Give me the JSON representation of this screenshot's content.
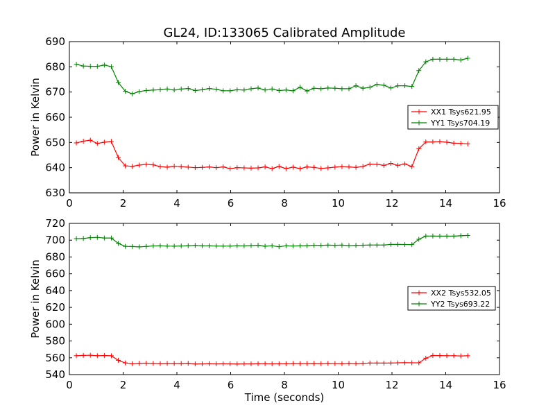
{
  "chart_data": [
    {
      "type": "line",
      "title": "GL24, ID:133065 Calibrated Amplitude",
      "xlabel": "",
      "ylabel": "Power in Kelvin",
      "xlim": [
        0,
        16
      ],
      "ylim": [
        630,
        690
      ],
      "xticks": [
        0,
        2,
        4,
        6,
        8,
        10,
        12,
        14,
        16
      ],
      "yticks": [
        630,
        640,
        650,
        660,
        670,
        680,
        690
      ],
      "grid": false,
      "legend": "right",
      "x": [
        0.26,
        0.52,
        0.78,
        1.04,
        1.3,
        1.56,
        1.82,
        2.08,
        2.34,
        2.6,
        2.86,
        3.12,
        3.38,
        3.64,
        3.9,
        4.16,
        4.42,
        4.68,
        4.94,
        5.2,
        5.46,
        5.72,
        5.98,
        6.24,
        6.5,
        6.76,
        7.02,
        7.28,
        7.54,
        7.8,
        8.06,
        8.32,
        8.58,
        8.84,
        9.1,
        9.36,
        9.62,
        9.88,
        10.14,
        10.4,
        10.66,
        10.92,
        11.18,
        11.44,
        11.7,
        11.96,
        12.22,
        12.48,
        12.74,
        13.0,
        13.26,
        13.52,
        13.78,
        14.04,
        14.3,
        14.56,
        14.82
      ],
      "series": [
        {
          "name": "XX1 Tsys621.95",
          "color": "#ff0000",
          "values": [
            649.8,
            650.5,
            650.9,
            649.6,
            650.1,
            650.4,
            644.0,
            640.7,
            640.5,
            641.0,
            641.3,
            641.1,
            640.4,
            640.2,
            640.6,
            640.4,
            640.2,
            640.0,
            640.1,
            640.3,
            640.0,
            640.3,
            639.6,
            640.0,
            639.9,
            639.8,
            639.9,
            640.3,
            639.6,
            640.5,
            639.6,
            640.2,
            639.6,
            640.3,
            640.1,
            639.7,
            639.9,
            640.2,
            640.4,
            640.3,
            640.1,
            640.5,
            641.4,
            641.3,
            640.9,
            641.7,
            640.9,
            641.5,
            640.4,
            647.5,
            650.2,
            650.2,
            650.3,
            650.1,
            649.7,
            649.6,
            649.4
          ]
        },
        {
          "name": "YY1 Tsys704.19",
          "color": "#008000",
          "values": [
            681.0,
            680.3,
            680.2,
            680.2,
            680.7,
            680.1,
            673.8,
            670.3,
            669.3,
            670.2,
            670.6,
            670.8,
            670.9,
            671.2,
            670.8,
            671.2,
            671.4,
            670.6,
            670.9,
            671.4,
            671.1,
            670.5,
            670.5,
            670.9,
            670.8,
            671.3,
            671.6,
            670.8,
            671.2,
            670.6,
            670.8,
            670.5,
            671.9,
            670.4,
            671.5,
            671.3,
            671.6,
            671.5,
            671.3,
            671.3,
            672.5,
            671.5,
            671.9,
            673.0,
            672.7,
            671.6,
            672.5,
            672.5,
            672.2,
            678.5,
            682.0,
            683.0,
            683.0,
            683.0,
            683.0,
            682.7,
            683.4
          ]
        }
      ]
    },
    {
      "type": "line",
      "title": "",
      "xlabel": "Time (seconds)",
      "ylabel": "Power in Kelvin",
      "xlim": [
        0,
        16
      ],
      "ylim": [
        540,
        720
      ],
      "xticks": [
        0,
        2,
        4,
        6,
        8,
        10,
        12,
        14,
        16
      ],
      "yticks": [
        540,
        560,
        580,
        600,
        620,
        640,
        660,
        680,
        700,
        720
      ],
      "grid": false,
      "legend": "right",
      "x": [
        0.26,
        0.52,
        0.78,
        1.04,
        1.3,
        1.56,
        1.82,
        2.08,
        2.34,
        2.6,
        2.86,
        3.12,
        3.38,
        3.64,
        3.9,
        4.16,
        4.42,
        4.68,
        4.94,
        5.2,
        5.46,
        5.72,
        5.98,
        6.24,
        6.5,
        6.76,
        7.02,
        7.28,
        7.54,
        7.8,
        8.06,
        8.32,
        8.58,
        8.84,
        9.1,
        9.36,
        9.62,
        9.88,
        10.14,
        10.4,
        10.66,
        10.92,
        11.18,
        11.44,
        11.7,
        11.96,
        12.22,
        12.48,
        12.74,
        13.0,
        13.26,
        13.52,
        13.78,
        14.04,
        14.3,
        14.56,
        14.82
      ],
      "series": [
        {
          "name": "XX2 Tsys532.05",
          "color": "#ff0000",
          "values": [
            562.5,
            562.8,
            563.0,
            562.5,
            562.7,
            562.4,
            557.0,
            553.9,
            553.0,
            553.5,
            553.6,
            553.4,
            553.1,
            553.3,
            553.3,
            553.3,
            553.5,
            552.7,
            552.8,
            553.0,
            552.8,
            552.9,
            552.8,
            552.7,
            552.8,
            552.8,
            552.9,
            553.0,
            552.8,
            552.9,
            553.0,
            553.3,
            553.1,
            553.2,
            553.3,
            553.1,
            553.4,
            553.2,
            553.0,
            553.4,
            553.1,
            553.4,
            553.8,
            553.8,
            553.7,
            553.8,
            554.0,
            554.1,
            554.0,
            554.0,
            559.5,
            562.7,
            562.6,
            562.5,
            562.5,
            562.2,
            562.4
          ]
        },
        {
          "name": "YY2 Tsys693.22",
          "color": "#008000",
          "values": [
            701.8,
            702.0,
            703.0,
            703.3,
            702.6,
            702.6,
            696.2,
            692.6,
            692.4,
            692.0,
            692.5,
            693.2,
            693.3,
            693.0,
            692.9,
            693.1,
            693.4,
            693.8,
            693.3,
            693.3,
            693.1,
            693.0,
            693.0,
            693.3,
            693.2,
            693.6,
            694.0,
            692.8,
            693.3,
            692.2,
            693.3,
            693.1,
            693.3,
            693.5,
            694.0,
            693.8,
            694.1,
            693.9,
            694.1,
            693.6,
            693.8,
            694.0,
            694.2,
            694.2,
            694.2,
            694.9,
            694.9,
            694.8,
            694.7,
            701.1,
            704.9,
            704.9,
            704.8,
            704.8,
            704.8,
            705.2,
            705.6
          ]
        }
      ]
    }
  ]
}
